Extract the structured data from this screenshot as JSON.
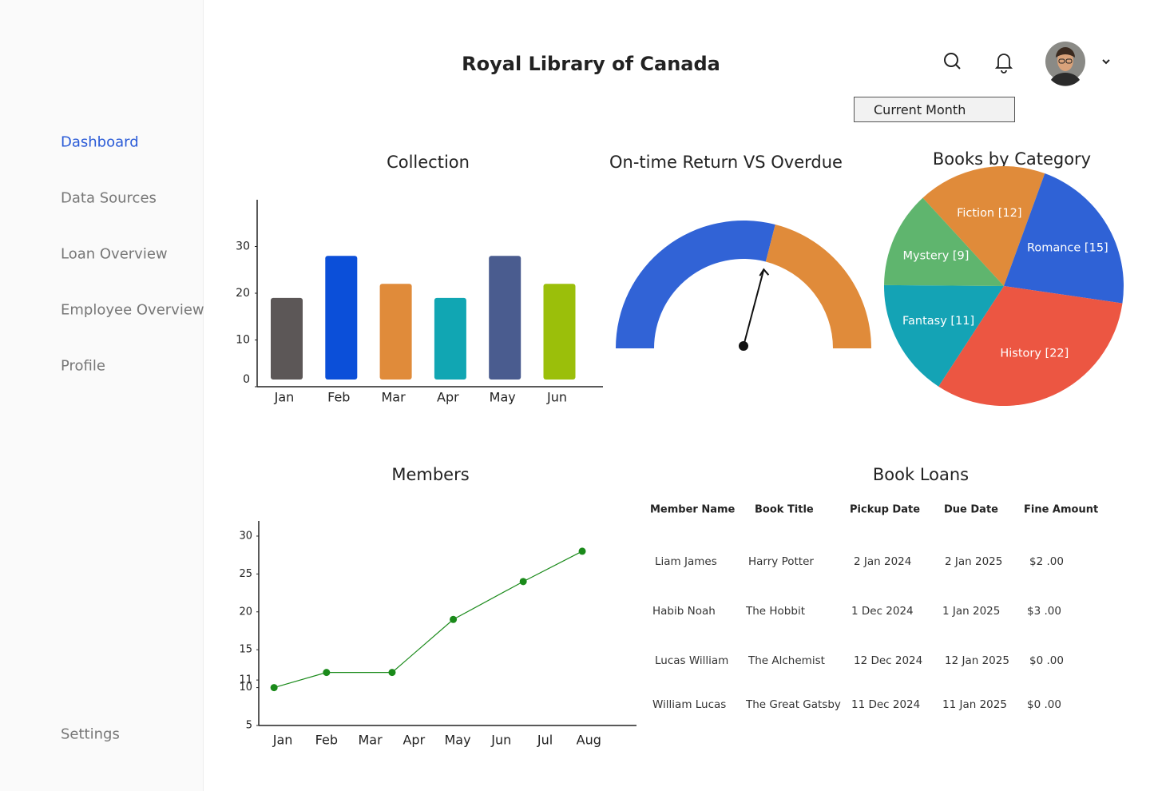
{
  "sidebar": {
    "nav": [
      "Dashboard",
      "Data Sources",
      "Loan Overview",
      "Employee Overview",
      "Profile"
    ],
    "settings": "Settings"
  },
  "header": {
    "title": "Royal Library of Canada",
    "filter": "Current Month"
  },
  "chart_data": [
    {
      "type": "bar",
      "title": "Collection",
      "categories": [
        "Jan",
        "Feb",
        "Mar",
        "Apr",
        "May",
        "Jun"
      ],
      "values": [
        19,
        28,
        22,
        19,
        28,
        22
      ],
      "colors": [
        "#5c5757",
        "#0b4fd9",
        "#e08b3a",
        "#11a6b3",
        "#4a5c8f",
        "#9bbf0a"
      ],
      "ylim": [
        0,
        40
      ],
      "yticks": [
        0,
        10,
        20,
        30
      ]
    },
    {
      "type": "gauge",
      "title": "On-time Return VS Overdue",
      "values": [
        58,
        42
      ],
      "colors": [
        "#3163d6",
        "#e08b3a"
      ]
    },
    {
      "type": "pie",
      "title": "Books by Category",
      "values": [
        12,
        15,
        22,
        11,
        9
      ],
      "value_labels": [
        "Fiction [12]",
        "Romance [15]",
        "History [22]",
        "Fantasy [11]",
        "Mystery [9]"
      ],
      "colors": [
        "#e08b3a",
        "#2f62d6",
        "#ec5642",
        "#14a3b5",
        "#5fb56e"
      ]
    },
    {
      "type": "line",
      "title": "Members",
      "categories": [
        "Jan",
        "Feb",
        "Mar",
        "Apr",
        "May",
        "Jun",
        "Jul",
        "Aug"
      ],
      "x": [
        -0.2,
        1,
        2.5,
        3.9,
        5.5,
        6.85
      ],
      "values": [
        10,
        12,
        12,
        19,
        24,
        28
      ],
      "color": "#1a8a1a",
      "xlim": [
        -0.55,
        8
      ],
      "ylim": [
        5,
        32
      ],
      "yticks": [
        5,
        10,
        11,
        15,
        20,
        25,
        30
      ]
    }
  ],
  "table": {
    "title": "Book Loans",
    "columns": [
      "Member Name",
      "Book Title",
      "Pickup Date",
      "Due Date",
      "Fine Amount"
    ],
    "rows": [
      [
        "Liam James",
        "Harry Potter",
        "2 Jan 2024",
        "2 Jan 2025",
        "$2 .00"
      ],
      [
        "Habib Noah",
        "The Hobbit",
        "1 Dec 2024",
        "1 Jan 2025",
        "$3 .00"
      ],
      [
        "Lucas William",
        "The Alchemist",
        "12 Dec 2024",
        "12 Jan 2025",
        "$0 .00"
      ],
      [
        "William Lucas",
        "The Great Gatsby",
        "11 Dec 2024",
        "11 Jan 2025",
        "$0 .00"
      ]
    ]
  }
}
